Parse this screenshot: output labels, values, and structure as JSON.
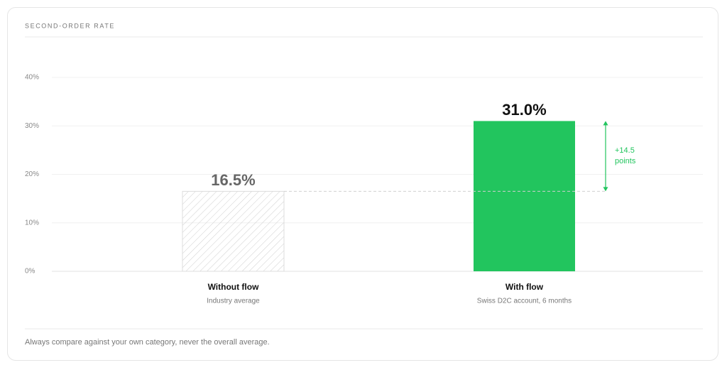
{
  "chart_data": {
    "type": "bar",
    "title": "SECOND-ORDER RATE",
    "categories": [
      "Without flow",
      "With flow"
    ],
    "subcategories": [
      "Industry average",
      "Swiss D2C account, 6 months"
    ],
    "values": [
      16.5,
      31.0
    ],
    "value_labels": [
      "16.5%",
      "31.0%"
    ],
    "colors": [
      "#cfcfcf",
      "#22c55e"
    ],
    "hatched": [
      true,
      false
    ],
    "ylim": [
      0,
      40
    ],
    "yticks": [
      {
        "value": 0,
        "label": "0%"
      },
      {
        "value": 10,
        "label": "10%"
      },
      {
        "value": 20,
        "label": "20%"
      },
      {
        "value": 30,
        "label": "30%"
      },
      {
        "value": 40,
        "label": "40%"
      }
    ],
    "grid": true,
    "annotation": "+14.5 points",
    "annotation_color": "#22c55e",
    "footnote": "Always compare against your own category, never the overall average."
  }
}
